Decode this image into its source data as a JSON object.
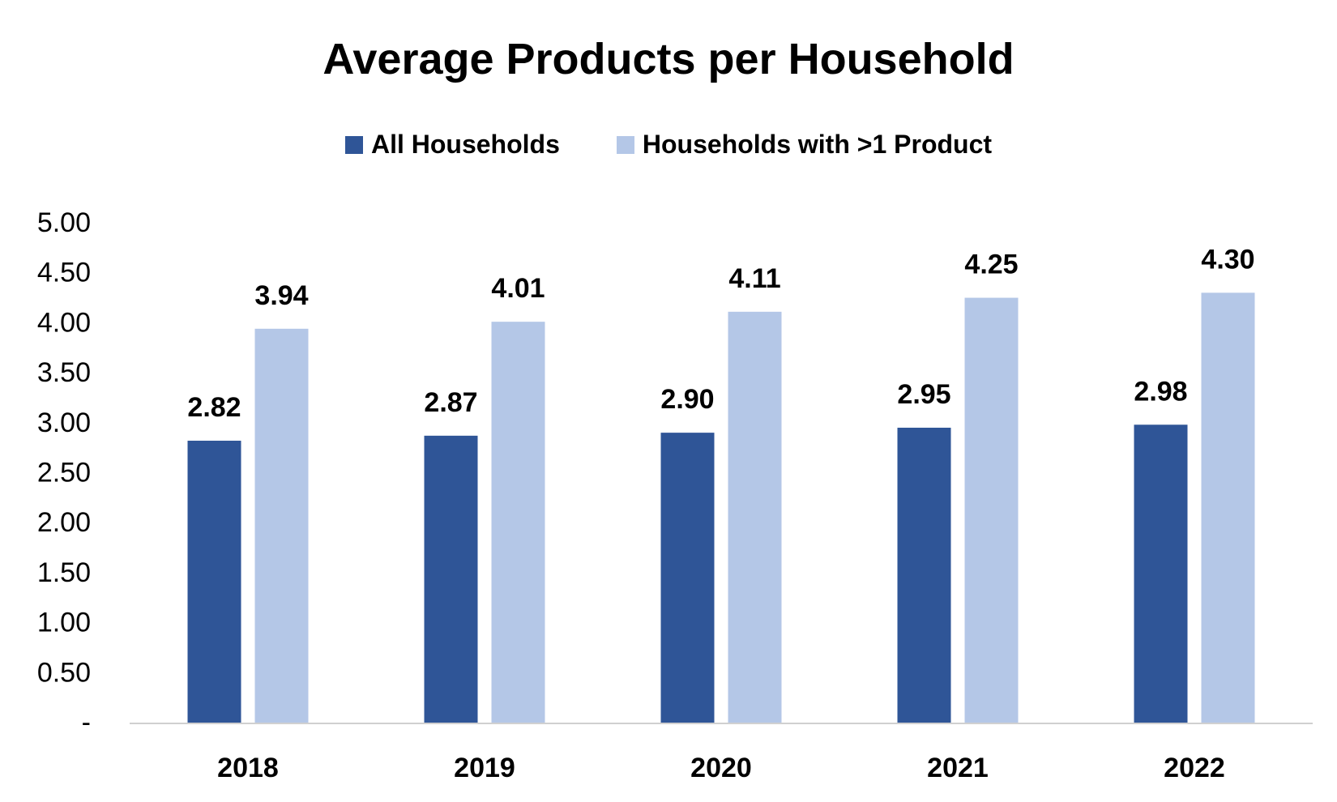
{
  "chart_data": {
    "type": "bar",
    "title": "Average Products per Household",
    "xlabel": "",
    "ylabel": "",
    "categories": [
      "2018",
      "2019",
      "2020",
      "2021",
      "2022"
    ],
    "series": [
      {
        "name": "All Households",
        "values": [
          2.82,
          2.87,
          2.9,
          2.95,
          2.98
        ],
        "labels": [
          "2.82",
          "2.87",
          "2.90",
          "2.95",
          "2.98"
        ],
        "color": "#2f5597"
      },
      {
        "name": "Households with >1 Product",
        "values": [
          3.94,
          4.01,
          4.11,
          4.25,
          4.3
        ],
        "labels": [
          "3.94",
          "4.01",
          "4.11",
          "4.25",
          "4.30"
        ],
        "color": "#b4c7e7"
      }
    ],
    "ylim": [
      0,
      5
    ],
    "yticks": [
      0,
      0.5,
      1,
      1.5,
      2,
      2.5,
      3,
      3.5,
      4,
      4.5,
      5
    ],
    "ytick_labels": [
      "-",
      "0.50",
      "1.00",
      "1.50",
      "2.00",
      "2.50",
      "3.00",
      "3.50",
      "4.00",
      "4.50",
      "5.00"
    ],
    "grid": false,
    "legend_position": "top"
  }
}
